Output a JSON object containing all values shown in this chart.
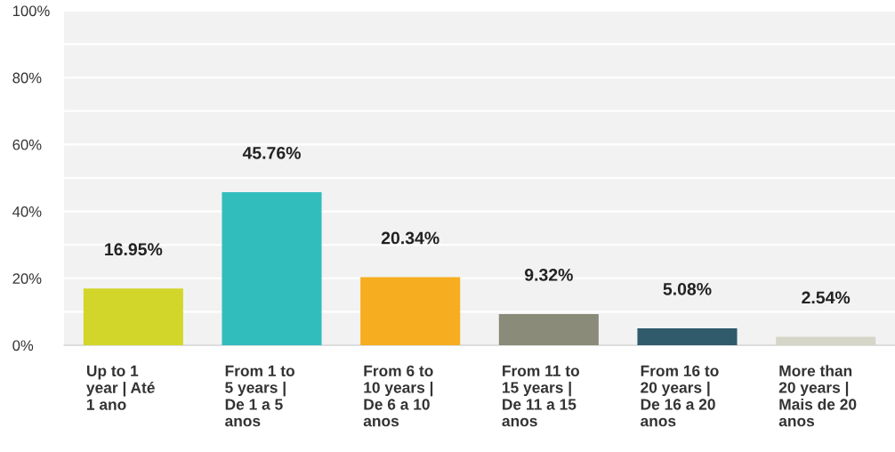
{
  "chart_data": {
    "type": "bar",
    "categories": [
      "Up to 1\nyear | Até\n1 ano",
      "From 1 to\n5 years |\nDe 1 a 5\nanos",
      "From 6 to\n10 years |\nDe 6 a 10\nanos",
      "From 11 to\n15 years |\nDe 11 a 15\nanos",
      "From 16 to\n20 years |\nDe 16 a 20\nanos",
      "More than\n20 years |\nMais de 20\nanos"
    ],
    "values": [
      16.95,
      45.76,
      20.34,
      9.32,
      5.08,
      2.54
    ],
    "colors": [
      "#d2d62a",
      "#32bdbd",
      "#f6ad1f",
      "#8a8b78",
      "#2f5b6b",
      "#d5d5c8"
    ],
    "value_labels": [
      "16.95%",
      "45.76%",
      "20.34%",
      "9.32%",
      "5.08%",
      "2.54%"
    ],
    "ylim": [
      0,
      100
    ],
    "yticks": [
      {
        "value": 0,
        "label": "0%"
      },
      {
        "value": 10,
        "label": null
      },
      {
        "value": 20,
        "label": "20%"
      },
      {
        "value": 30,
        "label": null
      },
      {
        "value": 40,
        "label": "40%"
      },
      {
        "value": 50,
        "label": null
      },
      {
        "value": 60,
        "label": "60%"
      },
      {
        "value": 70,
        "label": null
      },
      {
        "value": 80,
        "label": "80%"
      },
      {
        "value": 90,
        "label": null
      },
      {
        "value": 100,
        "label": "100%"
      }
    ],
    "grid": "y",
    "legend": false
  }
}
